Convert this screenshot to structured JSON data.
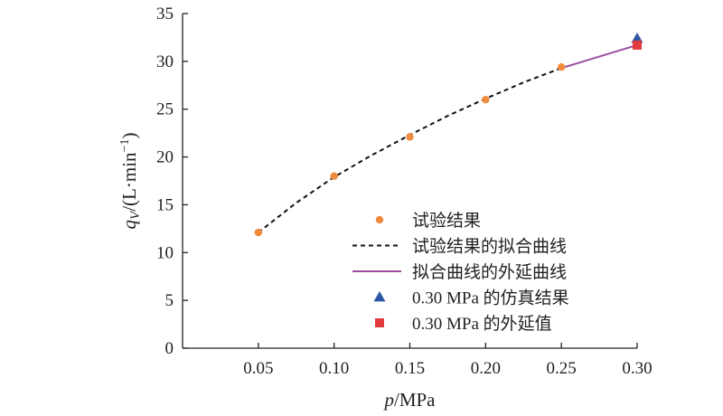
{
  "chart_data": {
    "type": "line",
    "xlabel": {
      "var": "p",
      "unit": "/MPa"
    },
    "ylabel": {
      "var": "q",
      "sub": "V",
      "unit": "/(L·min",
      "sup": "−1",
      "close": ")"
    },
    "xlim": [
      0,
      0.3
    ],
    "ylim": [
      0,
      35
    ],
    "x_ticks": [
      "0.05",
      "0.10",
      "0.15",
      "0.20",
      "0.25",
      "0.30"
    ],
    "x_tick_values": [
      0.05,
      0.1,
      0.15,
      0.2,
      0.25,
      0.3
    ],
    "y_ticks": [
      "0",
      "5",
      "10",
      "15",
      "20",
      "25",
      "30",
      "35"
    ],
    "y_tick_values": [
      0,
      5,
      10,
      15,
      20,
      25,
      30,
      35
    ],
    "grid": false,
    "legend_position": "lower-right",
    "series": [
      {
        "name": "试验结果",
        "kind": "scatter",
        "marker": "circle",
        "color": "#f08a3c",
        "x": [
          0.05,
          0.1,
          0.15,
          0.2,
          0.25
        ],
        "y": [
          12.1,
          18.0,
          22.1,
          26.0,
          29.4
        ]
      },
      {
        "name": "试验结果的拟合曲线",
        "kind": "line",
        "style": "dashed",
        "color": "#111111",
        "x": [
          0.05,
          0.075,
          0.1,
          0.125,
          0.15,
          0.175,
          0.2,
          0.225,
          0.25
        ],
        "y": [
          12.1,
          15.2,
          17.9,
          20.2,
          22.3,
          24.3,
          26.1,
          27.8,
          29.3
        ]
      },
      {
        "name": "拟合曲线的外延曲线",
        "kind": "line",
        "style": "solid",
        "color": "#9b4f9e",
        "x": [
          0.25,
          0.2625,
          0.275,
          0.2875,
          0.3
        ],
        "y": [
          29.3,
          29.9,
          30.5,
          31.1,
          31.7
        ]
      },
      {
        "name": "0.30 MPa 的仿真结果",
        "kind": "scatter",
        "marker": "triangle",
        "color": "#2e58a6",
        "x": [
          0.3
        ],
        "y": [
          32.4
        ]
      },
      {
        "name": "0.30 MPa 的外延值",
        "kind": "scatter",
        "marker": "square",
        "color": "#e03a3e",
        "x": [
          0.3
        ],
        "y": [
          31.7
        ]
      }
    ]
  }
}
